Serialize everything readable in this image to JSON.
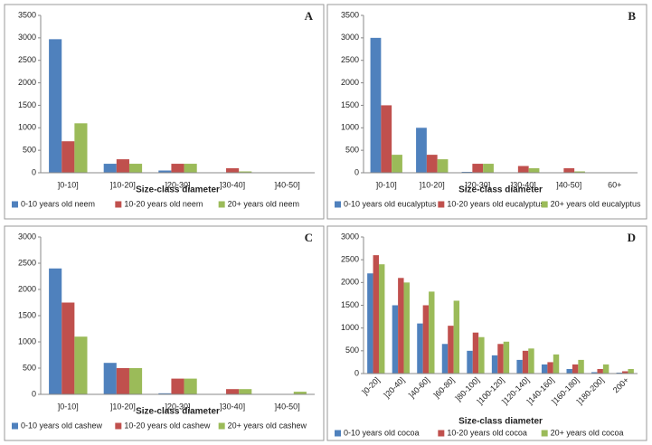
{
  "chart_data": [
    {
      "type": "bar",
      "panel": "A",
      "x_label": "Size-class diameter",
      "categories": [
        "]0-10]",
        "]10-20]",
        "]20-30]",
        "]30-40]",
        "]40-50]"
      ],
      "series": [
        {
          "name": "0-10 years old neem",
          "color": "#4f81bd",
          "values": [
            2970,
            200,
            50,
            10,
            5
          ]
        },
        {
          "name": "10-20 years old neem",
          "color": "#c0504d",
          "values": [
            700,
            300,
            200,
            100,
            10
          ]
        },
        {
          "name": "20+ years old neem",
          "color": "#9bbb59",
          "values": [
            1100,
            200,
            200,
            30,
            5
          ]
        }
      ],
      "ylim": [
        0,
        3500
      ],
      "yticks": [
        0,
        500,
        1000,
        1500,
        2000,
        2500,
        3000,
        3500
      ]
    },
    {
      "type": "bar",
      "panel": "B",
      "x_label": "Size-class diameter",
      "categories": [
        "]0-10]",
        "]10-20]",
        "]20-30]",
        "]30-40]",
        "]40-50]",
        "60+"
      ],
      "series": [
        {
          "name": "0-10 years old eucalyptus",
          "color": "#4f81bd",
          "values": [
            3000,
            1000,
            20,
            0,
            0,
            0
          ]
        },
        {
          "name": "10-20 years old eucalyptus",
          "color": "#c0504d",
          "values": [
            1500,
            400,
            200,
            150,
            100,
            0
          ]
        },
        {
          "name": "20+ years old eucalyptus",
          "color": "#9bbb59",
          "values": [
            400,
            300,
            200,
            100,
            30,
            10
          ]
        }
      ],
      "ylim": [
        0,
        3500
      ],
      "yticks": [
        0,
        500,
        1000,
        1500,
        2000,
        2500,
        3000,
        3500
      ]
    },
    {
      "type": "bar",
      "panel": "C",
      "x_label": "Size-class diameter",
      "categories": [
        "]0-10]",
        "]10-20]",
        "]20-30]",
        "]30-40]",
        "]40-50]"
      ],
      "series": [
        {
          "name": "0-10 years old cashew",
          "color": "#4f81bd",
          "values": [
            2400,
            600,
            20,
            0,
            0
          ]
        },
        {
          "name": "10-20 years old cashew",
          "color": "#c0504d",
          "values": [
            1750,
            500,
            300,
            100,
            0
          ]
        },
        {
          "name": "20+ years old cashew",
          "color": "#9bbb59",
          "values": [
            1100,
            500,
            300,
            100,
            50
          ]
        }
      ],
      "ylim": [
        0,
        3000
      ],
      "yticks": [
        0,
        500,
        1000,
        1500,
        2000,
        2500,
        3000
      ]
    },
    {
      "type": "bar",
      "panel": "D",
      "x_label": "Size-class diameter",
      "categories": [
        "]0-20]",
        "]20-40]",
        "]40-60]",
        "]60-80]",
        "]80-100]",
        "]100-120]",
        "]120-140]",
        "]140-160]",
        "]160-180]",
        "]180-200]",
        "200+"
      ],
      "series": [
        {
          "name": "0-10 years old cocoa",
          "color": "#4f81bd",
          "values": [
            2200,
            1500,
            1100,
            650,
            500,
            400,
            300,
            200,
            100,
            30,
            20
          ]
        },
        {
          "name": "10-20 years old cocoa",
          "color": "#c0504d",
          "values": [
            2600,
            2100,
            1500,
            1050,
            900,
            650,
            500,
            250,
            200,
            100,
            50
          ]
        },
        {
          "name": "20+ years old cocoa",
          "color": "#9bbb59",
          "values": [
            2400,
            2000,
            1800,
            1600,
            800,
            700,
            550,
            420,
            300,
            200,
            100
          ]
        }
      ],
      "ylim": [
        0,
        3000
      ],
      "yticks": [
        0,
        500,
        1000,
        1500,
        2000,
        2500,
        3000
      ]
    }
  ]
}
